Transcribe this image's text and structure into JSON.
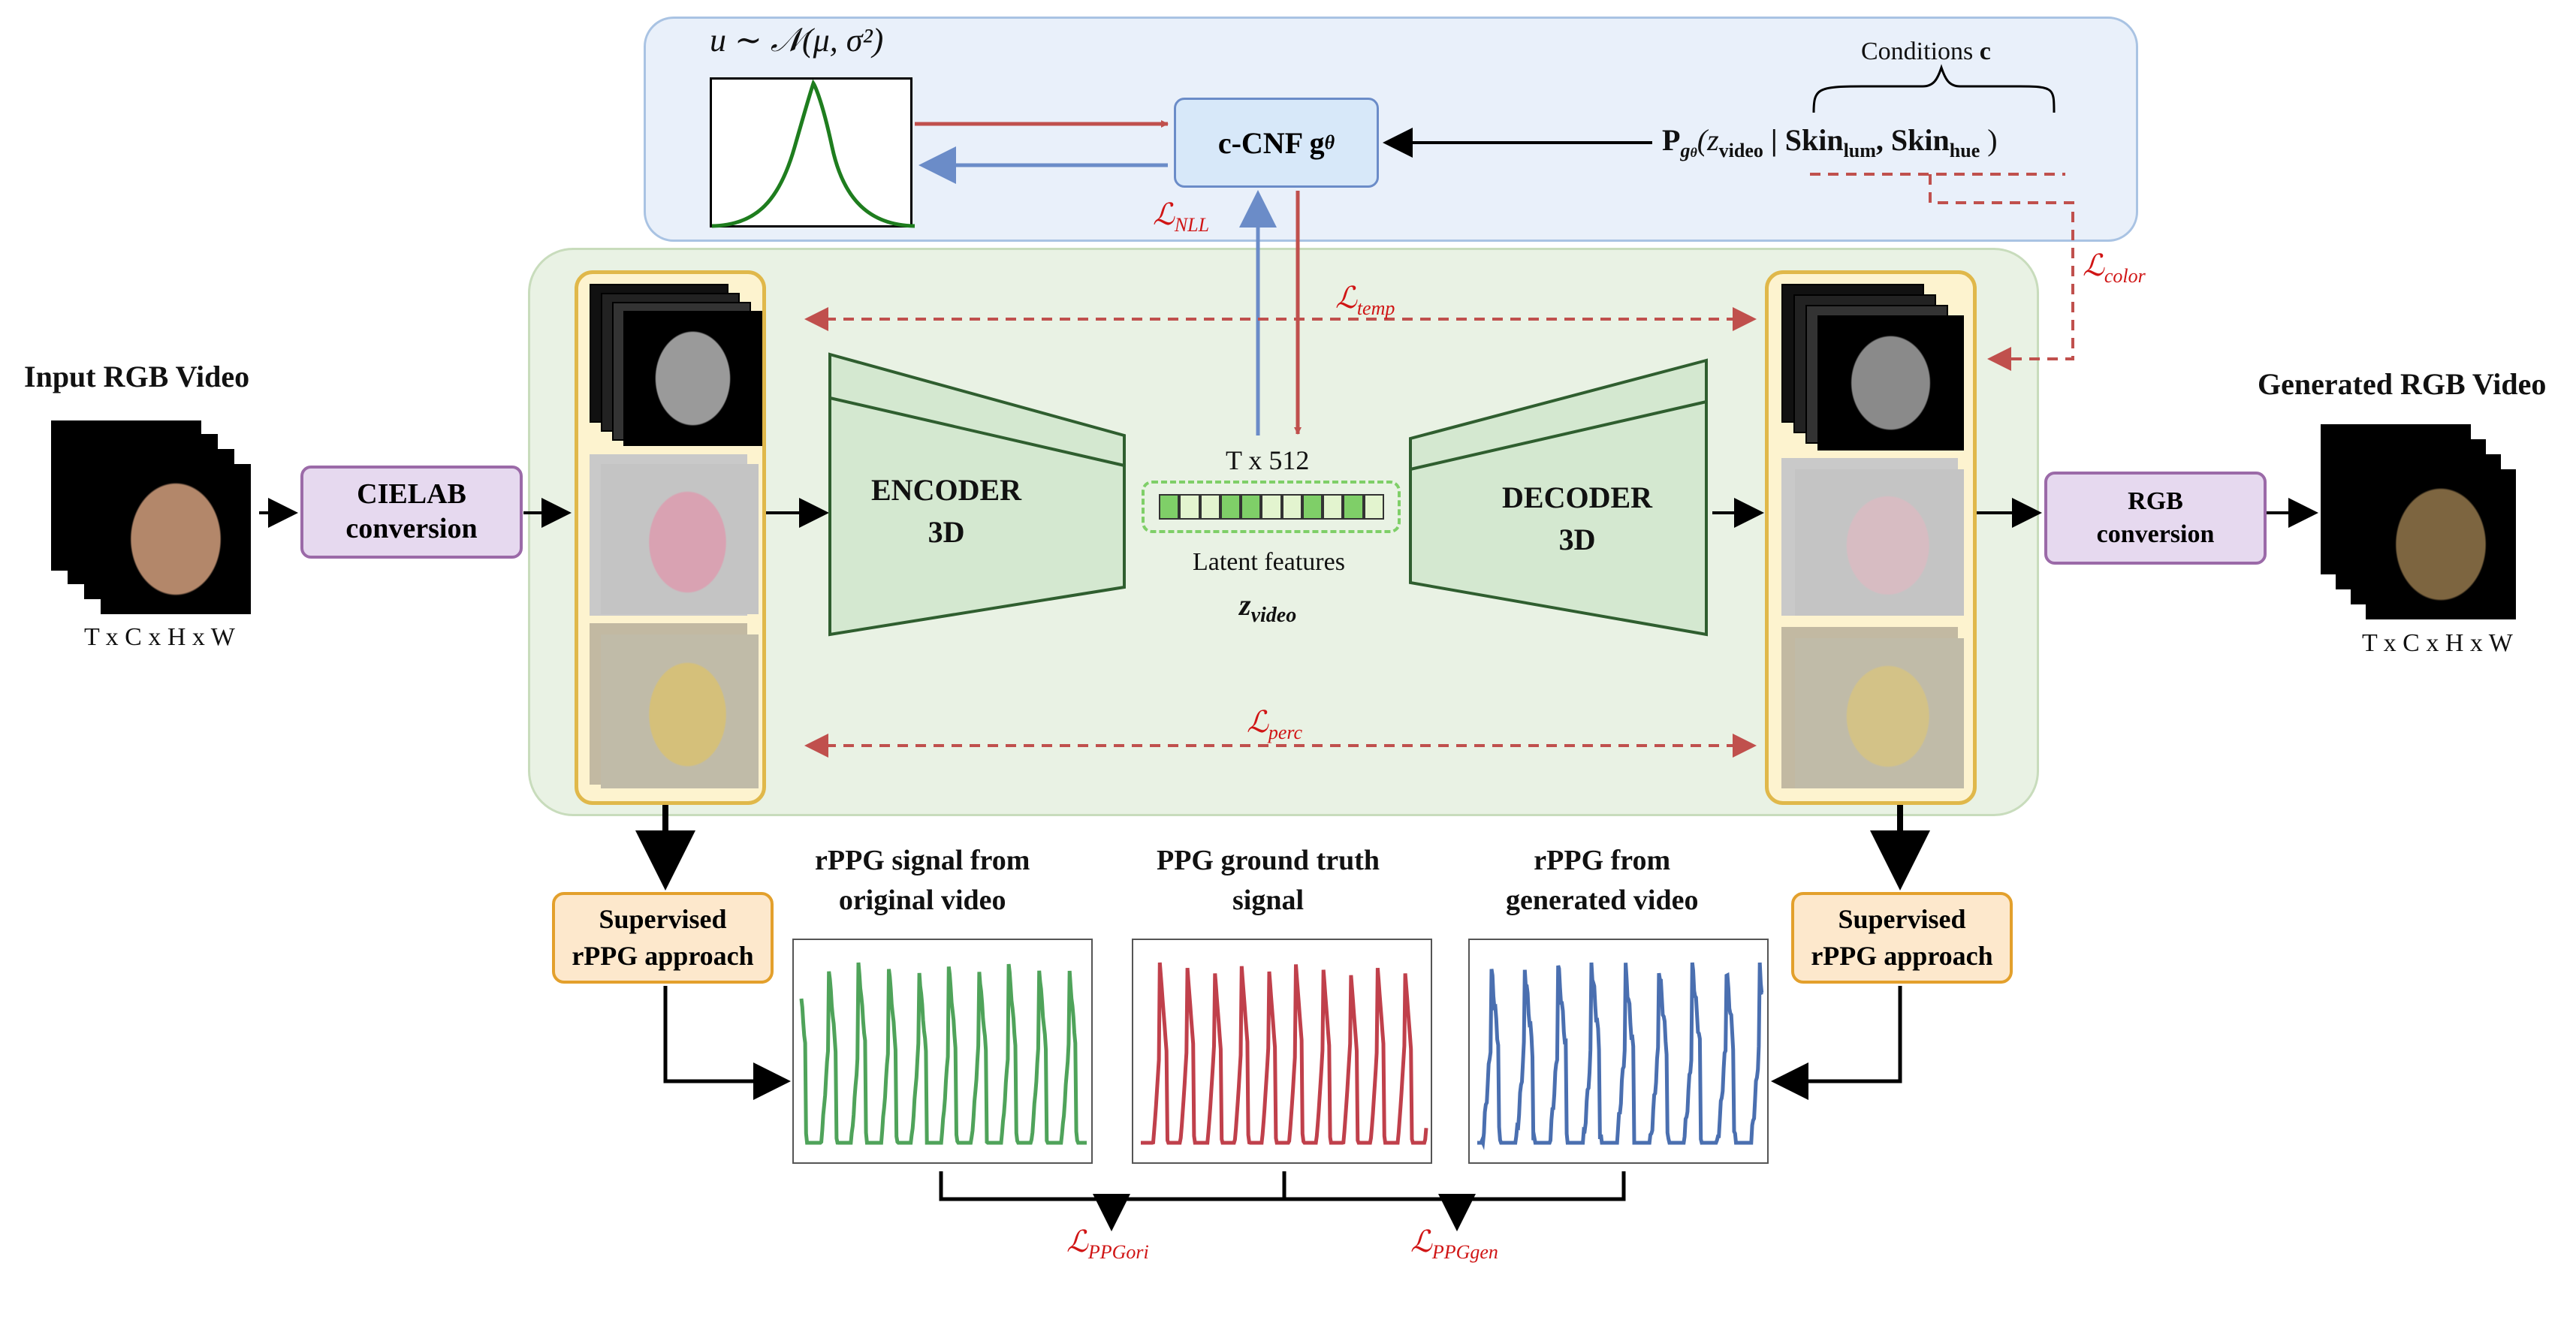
{
  "prior": {
    "label": "u ∼ 𝒩(μ, σ²)"
  },
  "cnf": {
    "label": "c-CNF g",
    "sub": "θ"
  },
  "conditions": {
    "label": "Conditions",
    "bold": "c"
  },
  "condition_formula": {
    "P": "P",
    "sub_g": "g",
    "sub_theta": "θ",
    "open": "(z",
    "video_sub": "video",
    "bar": " | Skin",
    "lum_sub": "lum",
    "comma": ", Skin",
    "hue_sub": "hue",
    "close": " )"
  },
  "losses": {
    "nll_main": "ℒ",
    "nll_sub": "NLL",
    "color_main": "ℒ",
    "color_sub": "color",
    "temp_main": "ℒ",
    "temp_sub": "temp",
    "perc_main": "ℒ",
    "perc_sub": "perc",
    "ppg_ori_main": "ℒ",
    "ppg_ori_sub": "PPGori",
    "ppg_gen_main": "ℒ",
    "ppg_gen_sub": "PPGgen"
  },
  "input": {
    "title": "Input RGB Video",
    "dims": "T x C x H x W"
  },
  "output": {
    "title": "Generated RGB Video",
    "dims": "T x C x H x W"
  },
  "cielab": {
    "label": "CIELAB conversion"
  },
  "rgb": {
    "label": "RGB conversion"
  },
  "encoder": {
    "line1": "ENCODER",
    "line2": "3D"
  },
  "decoder": {
    "line1": "DECODER",
    "line2": "3D"
  },
  "latent": {
    "size": "T x 512",
    "caption": "Latent features",
    "z": "z",
    "z_sub": "video"
  },
  "supervised_left": {
    "line1": "Supervised",
    "line2": "rPPG approach"
  },
  "supervised_right": {
    "line1": "Supervised",
    "line2": "rPPG approach"
  },
  "signals": [
    {
      "title1": "rPPG signal from",
      "title2": "original video",
      "color": "#4fa35a"
    },
    {
      "title1": "PPG ground truth",
      "title2": "signal",
      "color": "#c0404b"
    },
    {
      "title1": "rPPG from",
      "title2": "generated video",
      "color": "#4a6fb0"
    }
  ],
  "colors": {
    "red_arrow": "#c0504d",
    "blue_arrow": "#6b8cc8",
    "gaussian": "#1e7d1e",
    "latent_dark": "#7fcf68",
    "latent_light": "#e3f4cf"
  }
}
